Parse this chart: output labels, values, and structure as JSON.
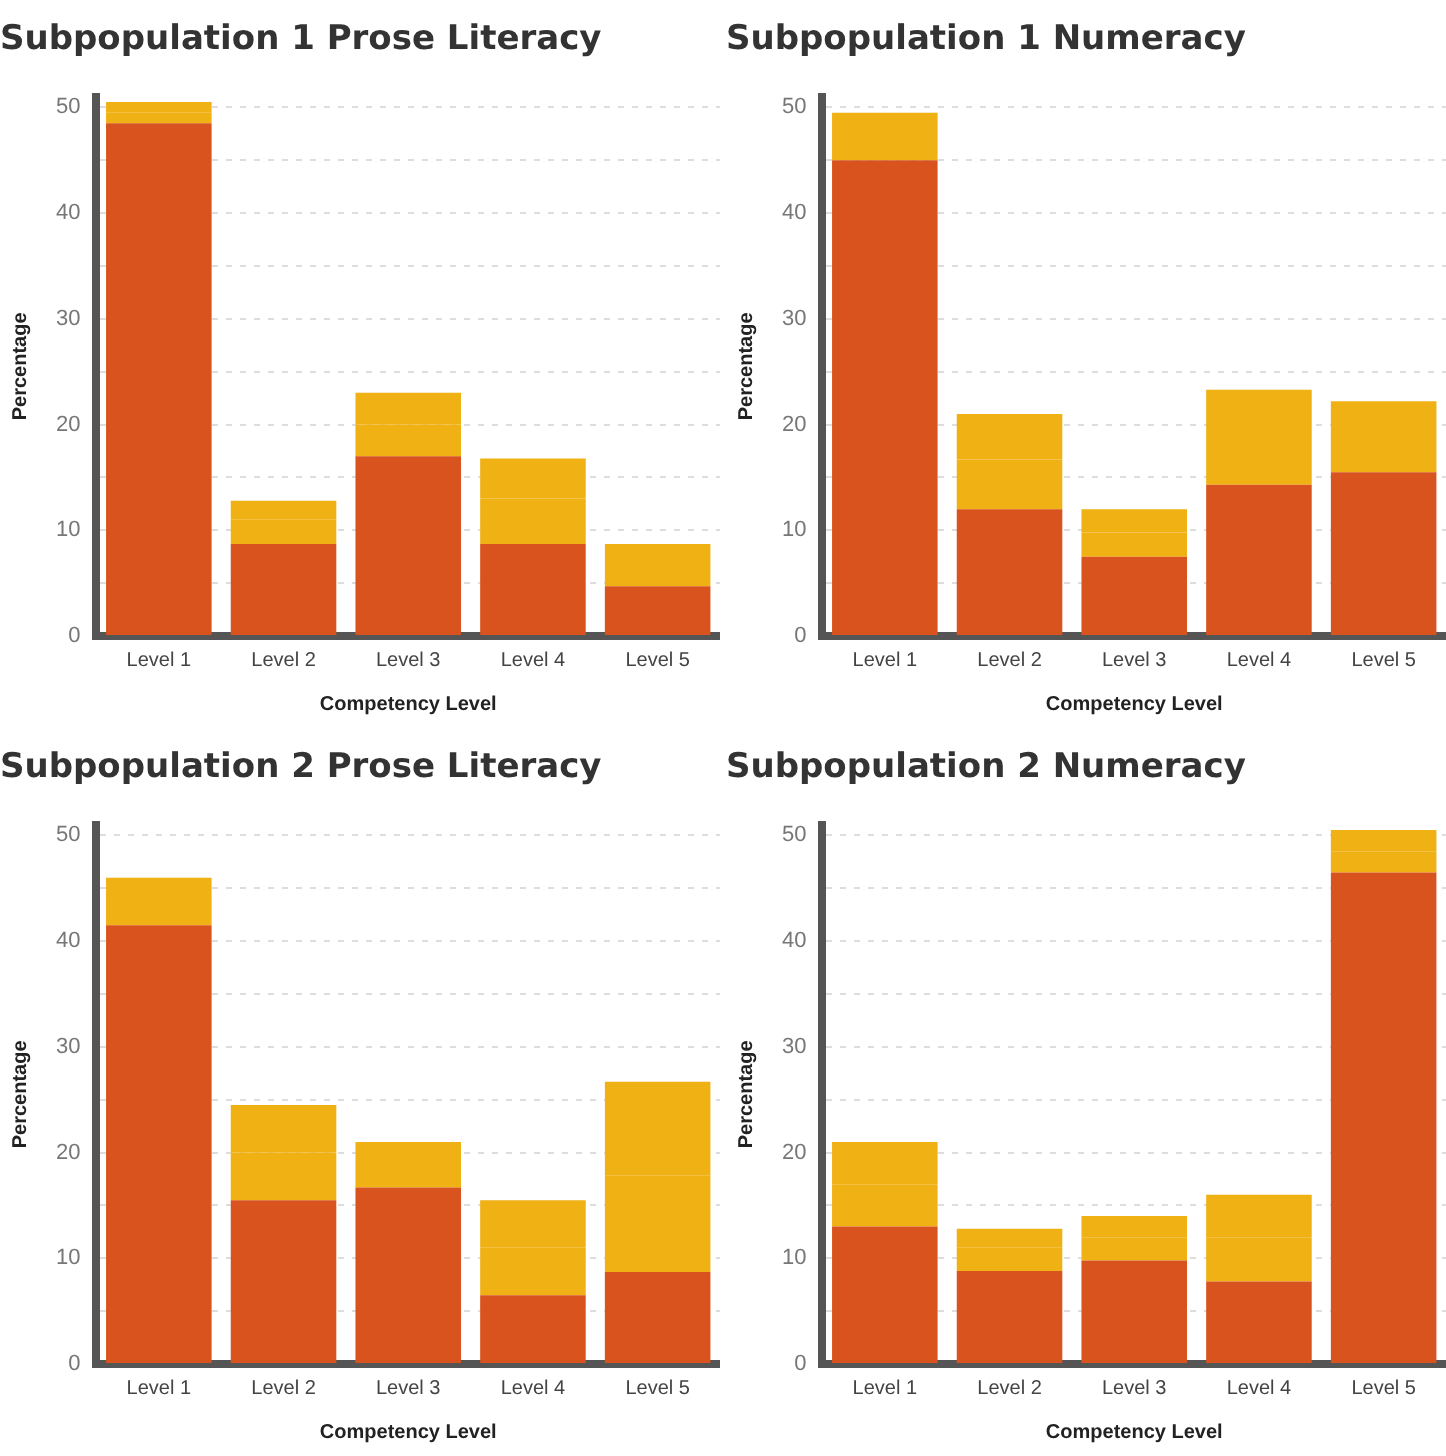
{
  "chart_data": [
    {
      "type": "bar",
      "title": "Subpopulation 1 Prose Literacy",
      "xlabel": "Competency Level",
      "ylabel": "Percentage",
      "categories": [
        "Level 1",
        "Level 2",
        "Level 3",
        "Level 4",
        "Level 5"
      ],
      "stacked": true,
      "grid": "y",
      "ylim": [
        0,
        51
      ],
      "yticks": [
        0,
        {
          "value": 5,
          "label": null
        },
        10,
        {
          "value": 15,
          "label": null
        },
        20,
        {
          "value": 25,
          "label": null
        },
        30,
        {
          "value": 35,
          "label": null
        },
        40,
        {
          "value": 45,
          "label": null
        },
        50
      ],
      "series": [
        {
          "color": "#d9531e",
          "values": [
            48.5,
            8.7,
            17,
            8.7,
            4.7
          ]
        },
        {
          "color": "#efb114",
          "values": [
            1,
            2.3,
            3,
            4.3,
            2.3
          ]
        },
        {
          "color": "#efb114",
          "values": [
            1,
            1.8,
            3,
            3.8,
            1.7
          ]
        }
      ]
    },
    {
      "type": "bar",
      "title": "Subpopulation 1 Numeracy",
      "xlabel": "Competency Level",
      "ylabel": "Percentage",
      "categories": [
        "Level 1",
        "Level 2",
        "Level 3",
        "Level 4",
        "Level 5"
      ],
      "stacked": true,
      "grid": "y",
      "ylim": [
        0,
        51
      ],
      "yticks": [
        0,
        {
          "value": 5,
          "label": null
        },
        10,
        {
          "value": 15,
          "label": null
        },
        20,
        {
          "value": 25,
          "label": null
        },
        30,
        {
          "value": 35,
          "label": null
        },
        40,
        {
          "value": 45,
          "label": null
        },
        50
      ],
      "series": [
        {
          "color": "#d9531e",
          "values": [
            45,
            12,
            7.5,
            14.3,
            15.5
          ]
        },
        {
          "color": "#efb114",
          "values": [
            2.2,
            4.7,
            2.3,
            4.7,
            3.5
          ]
        },
        {
          "color": "#efb114",
          "values": [
            2.3,
            4.3,
            2.2,
            4.3,
            3.2
          ]
        }
      ]
    },
    {
      "type": "bar",
      "title": "Subpopulation 2 Prose Literacy",
      "xlabel": "Competency Level",
      "ylabel": "Percentage",
      "categories": [
        "Level 1",
        "Level 2",
        "Level 3",
        "Level 4",
        "Level 5"
      ],
      "stacked": true,
      "grid": "y",
      "ylim": [
        0,
        51
      ],
      "yticks": [
        0,
        {
          "value": 5,
          "label": null
        },
        10,
        {
          "value": 15,
          "label": null
        },
        20,
        {
          "value": 25,
          "label": null
        },
        30,
        {
          "value": 35,
          "label": null
        },
        40,
        {
          "value": 45,
          "label": null
        },
        50
      ],
      "series": [
        {
          "color": "#d9531e",
          "values": [
            41.5,
            15.5,
            16.7,
            6.5,
            8.7
          ]
        },
        {
          "color": "#efb114",
          "values": [
            2.3,
            4.5,
            2.3,
            4.5,
            9.1
          ]
        },
        {
          "color": "#efb114",
          "values": [
            2.2,
            4.5,
            2,
            4.5,
            8.9
          ]
        }
      ]
    },
    {
      "type": "bar",
      "title": "Subpopulation 2 Numeracy",
      "xlabel": "Competency Level",
      "ylabel": "Percentage",
      "categories": [
        "Level 1",
        "Level 2",
        "Level 3",
        "Level 4",
        "Level 5"
      ],
      "stacked": true,
      "grid": "y",
      "ylim": [
        0,
        51
      ],
      "yticks": [
        0,
        {
          "value": 5,
          "label": null
        },
        10,
        {
          "value": 15,
          "label": null
        },
        20,
        {
          "value": 25,
          "label": null
        },
        30,
        {
          "value": 35,
          "label": null
        },
        40,
        {
          "value": 45,
          "label": null
        },
        50
      ],
      "series": [
        {
          "color": "#d9531e",
          "values": [
            13,
            8.8,
            9.8,
            7.8,
            46.5
          ]
        },
        {
          "color": "#efb114",
          "values": [
            4,
            2.2,
            2.2,
            4.2,
            2
          ]
        },
        {
          "color": "#efb114",
          "values": [
            4,
            1.8,
            2,
            4,
            2
          ]
        }
      ]
    }
  ]
}
